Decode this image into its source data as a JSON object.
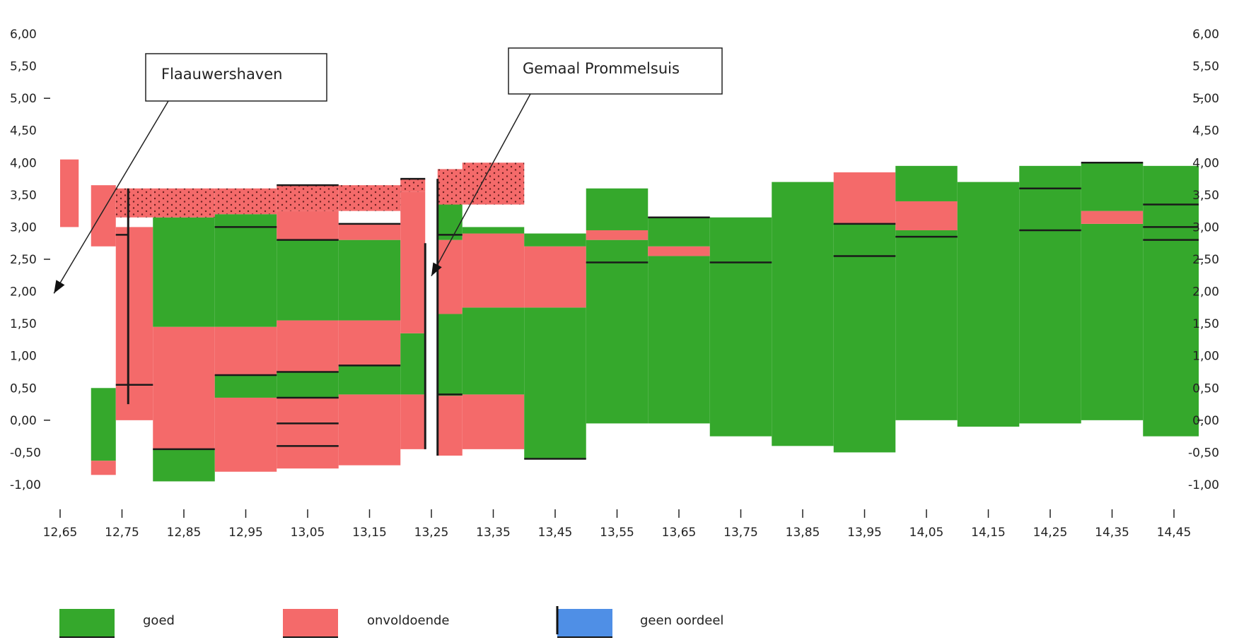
{
  "chart_data": {
    "type": "bar",
    "x_ticks": [
      "12,65",
      "12,75",
      "12,85",
      "12,95",
      "13,05",
      "13,15",
      "13,25",
      "13,35",
      "13,45",
      "13,55",
      "13,65",
      "13,75",
      "13,85",
      "13,95",
      "14,05",
      "14,15",
      "14,25",
      "14,35",
      "14,45"
    ],
    "y_ticks_left": [
      "6,00",
      "5,50",
      "5,00",
      "4,50",
      "4,00",
      "3,50",
      "3,00",
      "2,50",
      "2,00",
      "1,50",
      "1,00",
      "0,50",
      "0,00",
      "-0,50",
      "-1,00"
    ],
    "y_ticks_right": [
      "6,00",
      "5,50",
      "5,00",
      "4,50",
      "4,00",
      "3,50",
      "3,00",
      "2,50",
      "2,00",
      "1,50",
      "1,00",
      "0,50",
      "0,00",
      "-0,50",
      "-1,00"
    ],
    "ylim": [
      -1.0,
      6.0
    ],
    "colors": {
      "goed": "#35a82c",
      "onvoldoende": "#f46a6a",
      "geen_oordeel": "#4f8fe6"
    },
    "legend": [
      {
        "key": "goed",
        "label": "goed"
      },
      {
        "key": "onvoldoende",
        "label": "onvoldoende"
      },
      {
        "key": "geen_oordeel",
        "label": "geen oordeel"
      }
    ],
    "annotations": [
      {
        "text": "Flaauwershaven",
        "x": 12.64,
        "y": 1.97
      },
      {
        "text": "Gemaal Prommelsuis",
        "x": 13.25,
        "y": 2.24
      }
    ],
    "segments": [
      {
        "x0": 12.65,
        "x1": 12.68,
        "y0": 3.0,
        "y1": 4.05,
        "status": "onvoldoende"
      },
      {
        "x0": 12.7,
        "x1": 12.74,
        "y0": 2.7,
        "y1": 3.65,
        "status": "onvoldoende"
      },
      {
        "x0": 12.7,
        "x1": 12.74,
        "y0": -0.63,
        "y1": 0.5,
        "status": "goed"
      },
      {
        "x0": 12.7,
        "x1": 12.74,
        "y0": -0.85,
        "y1": -0.63,
        "status": "onvoldoende"
      },
      {
        "x0": 12.74,
        "x1": 12.8,
        "y0": 0.0,
        "y1": 3.0,
        "status": "onvoldoende"
      },
      {
        "x0": 12.8,
        "x1": 12.9,
        "y0": -0.95,
        "y1": -0.45,
        "status": "goed"
      },
      {
        "x0": 12.8,
        "x1": 12.9,
        "y0": -0.45,
        "y1": 1.45,
        "status": "onvoldoende"
      },
      {
        "x0": 12.8,
        "x1": 12.9,
        "y0": 1.45,
        "y1": 3.15,
        "status": "goed"
      },
      {
        "x0": 12.9,
        "x1": 13.0,
        "y0": -0.8,
        "y1": 0.35,
        "status": "onvoldoende"
      },
      {
        "x0": 12.9,
        "x1": 13.0,
        "y0": 0.35,
        "y1": 0.7,
        "status": "goed"
      },
      {
        "x0": 12.9,
        "x1": 13.0,
        "y0": 0.7,
        "y1": 1.45,
        "status": "onvoldoende"
      },
      {
        "x0": 12.9,
        "x1": 13.0,
        "y0": 1.45,
        "y1": 3.2,
        "status": "goed"
      },
      {
        "x0": 13.0,
        "x1": 13.1,
        "y0": -0.75,
        "y1": 0.35,
        "status": "onvoldoende"
      },
      {
        "x0": 13.0,
        "x1": 13.1,
        "y0": 0.35,
        "y1": 0.75,
        "status": "goed"
      },
      {
        "x0": 13.0,
        "x1": 13.1,
        "y0": 0.75,
        "y1": 1.55,
        "status": "onvoldoende"
      },
      {
        "x0": 13.0,
        "x1": 13.1,
        "y0": 1.55,
        "y1": 2.8,
        "status": "goed"
      },
      {
        "x0": 13.0,
        "x1": 13.1,
        "y0": 2.8,
        "y1": 3.25,
        "status": "onvoldoende"
      },
      {
        "x0": 13.1,
        "x1": 13.2,
        "y0": -0.7,
        "y1": 0.4,
        "status": "onvoldoende"
      },
      {
        "x0": 13.1,
        "x1": 13.2,
        "y0": 0.4,
        "y1": 0.85,
        "status": "goed"
      },
      {
        "x0": 13.1,
        "x1": 13.2,
        "y0": 0.85,
        "y1": 1.55,
        "status": "onvoldoende"
      },
      {
        "x0": 13.1,
        "x1": 13.2,
        "y0": 1.55,
        "y1": 2.8,
        "status": "goed"
      },
      {
        "x0": 13.1,
        "x1": 13.2,
        "y0": 2.8,
        "y1": 3.05,
        "status": "onvoldoende"
      },
      {
        "x0": 13.2,
        "x1": 13.24,
        "y0": -0.45,
        "y1": 0.4,
        "status": "onvoldoende"
      },
      {
        "x0": 13.2,
        "x1": 13.24,
        "y0": 0.4,
        "y1": 1.35,
        "status": "goed"
      },
      {
        "x0": 13.2,
        "x1": 13.24,
        "y0": 1.35,
        "y1": 3.55,
        "status": "onvoldoende"
      },
      {
        "x0": 13.26,
        "x1": 13.3,
        "y0": -0.55,
        "y1": 0.38,
        "status": "onvoldoende"
      },
      {
        "x0": 13.26,
        "x1": 13.3,
        "y0": 0.38,
        "y1": 1.65,
        "status": "goed"
      },
      {
        "x0": 13.26,
        "x1": 13.3,
        "y0": 1.65,
        "y1": 2.8,
        "status": "onvoldoende"
      },
      {
        "x0": 13.26,
        "x1": 13.3,
        "y0": 2.8,
        "y1": 3.35,
        "status": "goed"
      },
      {
        "x0": 13.3,
        "x1": 13.4,
        "y0": -0.45,
        "y1": 0.4,
        "status": "onvoldoende"
      },
      {
        "x0": 13.3,
        "x1": 13.4,
        "y0": 0.4,
        "y1": 1.75,
        "status": "goed"
      },
      {
        "x0": 13.3,
        "x1": 13.4,
        "y0": 1.75,
        "y1": 2.9,
        "status": "onvoldoende"
      },
      {
        "x0": 13.3,
        "x1": 13.4,
        "y0": 2.9,
        "y1": 3.0,
        "status": "goed"
      },
      {
        "x0": 13.4,
        "x1": 13.5,
        "y0": -0.6,
        "y1": 1.75,
        "status": "goed"
      },
      {
        "x0": 13.4,
        "x1": 13.5,
        "y0": 1.75,
        "y1": 2.7,
        "status": "onvoldoende"
      },
      {
        "x0": 13.4,
        "x1": 13.5,
        "y0": 2.7,
        "y1": 2.9,
        "status": "goed"
      },
      {
        "x0": 13.5,
        "x1": 13.6,
        "y0": -0.05,
        "y1": 2.8,
        "status": "goed"
      },
      {
        "x0": 13.5,
        "x1": 13.6,
        "y0": 2.8,
        "y1": 2.95,
        "status": "onvoldoende"
      },
      {
        "x0": 13.5,
        "x1": 13.6,
        "y0": 2.95,
        "y1": 3.6,
        "status": "goed"
      },
      {
        "x0": 13.6,
        "x1": 13.7,
        "y0": -0.05,
        "y1": 2.55,
        "status": "goed"
      },
      {
        "x0": 13.6,
        "x1": 13.7,
        "y0": 2.55,
        "y1": 2.7,
        "status": "onvoldoende"
      },
      {
        "x0": 13.6,
        "x1": 13.7,
        "y0": 2.7,
        "y1": 3.15,
        "status": "goed"
      },
      {
        "x0": 13.7,
        "x1": 13.8,
        "y0": -0.25,
        "y1": 3.15,
        "status": "goed"
      },
      {
        "x0": 13.8,
        "x1": 13.9,
        "y0": -0.4,
        "y1": 3.7,
        "status": "goed"
      },
      {
        "x0": 13.9,
        "x1": 14.0,
        "y0": -0.5,
        "y1": 3.05,
        "status": "goed"
      },
      {
        "x0": 13.9,
        "x1": 14.0,
        "y0": 3.05,
        "y1": 3.85,
        "status": "onvoldoende"
      },
      {
        "x0": 14.0,
        "x1": 14.1,
        "y0": 0.0,
        "y1": 2.95,
        "status": "goed"
      },
      {
        "x0": 14.0,
        "x1": 14.1,
        "y0": 2.95,
        "y1": 3.4,
        "status": "onvoldoende"
      },
      {
        "x0": 14.0,
        "x1": 14.1,
        "y0": 3.4,
        "y1": 3.95,
        "status": "goed"
      },
      {
        "x0": 14.1,
        "x1": 14.2,
        "y0": -0.1,
        "y1": 3.7,
        "status": "goed"
      },
      {
        "x0": 14.2,
        "x1": 14.3,
        "y0": -0.05,
        "y1": 3.95,
        "status": "goed"
      },
      {
        "x0": 14.3,
        "x1": 14.4,
        "y0": 0.0,
        "y1": 3.05,
        "status": "goed"
      },
      {
        "x0": 14.3,
        "x1": 14.4,
        "y0": 3.05,
        "y1": 3.25,
        "status": "onvoldoende"
      },
      {
        "x0": 14.3,
        "x1": 14.4,
        "y0": 3.25,
        "y1": 4.0,
        "status": "goed"
      },
      {
        "x0": 14.4,
        "x1": 14.49,
        "y0": -0.25,
        "y1": 3.95,
        "status": "goed"
      }
    ],
    "hatched_segments": [
      {
        "x0": 12.74,
        "x1": 12.8,
        "y0": 3.15,
        "y1": 3.6
      },
      {
        "x0": 12.8,
        "x1": 12.9,
        "y0": 3.15,
        "y1": 3.6
      },
      {
        "x0": 12.9,
        "x1": 13.0,
        "y0": 3.2,
        "y1": 3.6
      },
      {
        "x0": 13.0,
        "x1": 13.1,
        "y0": 3.25,
        "y1": 3.65
      },
      {
        "x0": 13.1,
        "x1": 13.2,
        "y0": 3.25,
        "y1": 3.65
      },
      {
        "x0": 13.2,
        "x1": 13.24,
        "y0": 3.55,
        "y1": 3.75
      },
      {
        "x0": 13.26,
        "x1": 13.3,
        "y0": 3.35,
        "y1": 3.9
      },
      {
        "x0": 13.3,
        "x1": 13.4,
        "y0": 3.35,
        "y1": 4.0
      }
    ],
    "black_lines": [
      {
        "x0": 12.74,
        "x1": 12.76,
        "y": 2.88
      },
      {
        "x0": 12.74,
        "x1": 12.8,
        "y": 0.55
      },
      {
        "x0": 12.8,
        "x1": 12.9,
        "y": -0.45
      },
      {
        "x0": 12.9,
        "x1": 13.0,
        "y": 0.7
      },
      {
        "x0": 12.9,
        "x1": 13.0,
        "y": 3.0
      },
      {
        "x0": 13.0,
        "x1": 13.1,
        "y": 0.75
      },
      {
        "x0": 13.0,
        "x1": 13.1,
        "y": 0.35
      },
      {
        "x0": 13.0,
        "x1": 13.1,
        "y": -0.05
      },
      {
        "x0": 13.0,
        "x1": 13.1,
        "y": -0.4
      },
      {
        "x0": 13.0,
        "x1": 13.1,
        "y": 2.8
      },
      {
        "x0": 13.0,
        "x1": 13.1,
        "y": 3.65
      },
      {
        "x0": 13.1,
        "x1": 13.2,
        "y": 0.85
      },
      {
        "x0": 13.1,
        "x1": 13.2,
        "y": 3.05
      },
      {
        "x0": 13.2,
        "x1": 13.24,
        "y": 3.75
      },
      {
        "x0": 13.26,
        "x1": 13.3,
        "y": 2.88
      },
      {
        "x0": 13.26,
        "x1": 13.3,
        "y": 0.4
      },
      {
        "x0": 13.4,
        "x1": 13.5,
        "y": -0.6
      },
      {
        "x0": 13.5,
        "x1": 13.6,
        "y": 2.45
      },
      {
        "x0": 13.6,
        "x1": 13.7,
        "y": 3.15
      },
      {
        "x0": 13.7,
        "x1": 13.8,
        "y": 2.45
      },
      {
        "x0": 13.9,
        "x1": 14.0,
        "y": 3.05
      },
      {
        "x0": 13.9,
        "x1": 14.0,
        "y": 2.55
      },
      {
        "x0": 14.0,
        "x1": 14.1,
        "y": 2.85
      },
      {
        "x0": 14.2,
        "x1": 14.3,
        "y": 3.6
      },
      {
        "x0": 14.2,
        "x1": 14.3,
        "y": 2.95
      },
      {
        "x0": 14.3,
        "x1": 14.4,
        "y": 4.0
      },
      {
        "x0": 14.4,
        "x1": 14.49,
        "y": 3.35
      },
      {
        "x0": 14.4,
        "x1": 14.49,
        "y": 3.0
      },
      {
        "x0": 14.4,
        "x1": 14.49,
        "y": 2.8
      }
    ],
    "vertical_lines": [
      {
        "x": 12.76,
        "y0": 0.25,
        "y1": 3.6
      },
      {
        "x": 13.24,
        "y0": -0.45,
        "y1": 2.75
      },
      {
        "x": 13.26,
        "y0": -0.55,
        "y1": 3.75
      }
    ]
  }
}
